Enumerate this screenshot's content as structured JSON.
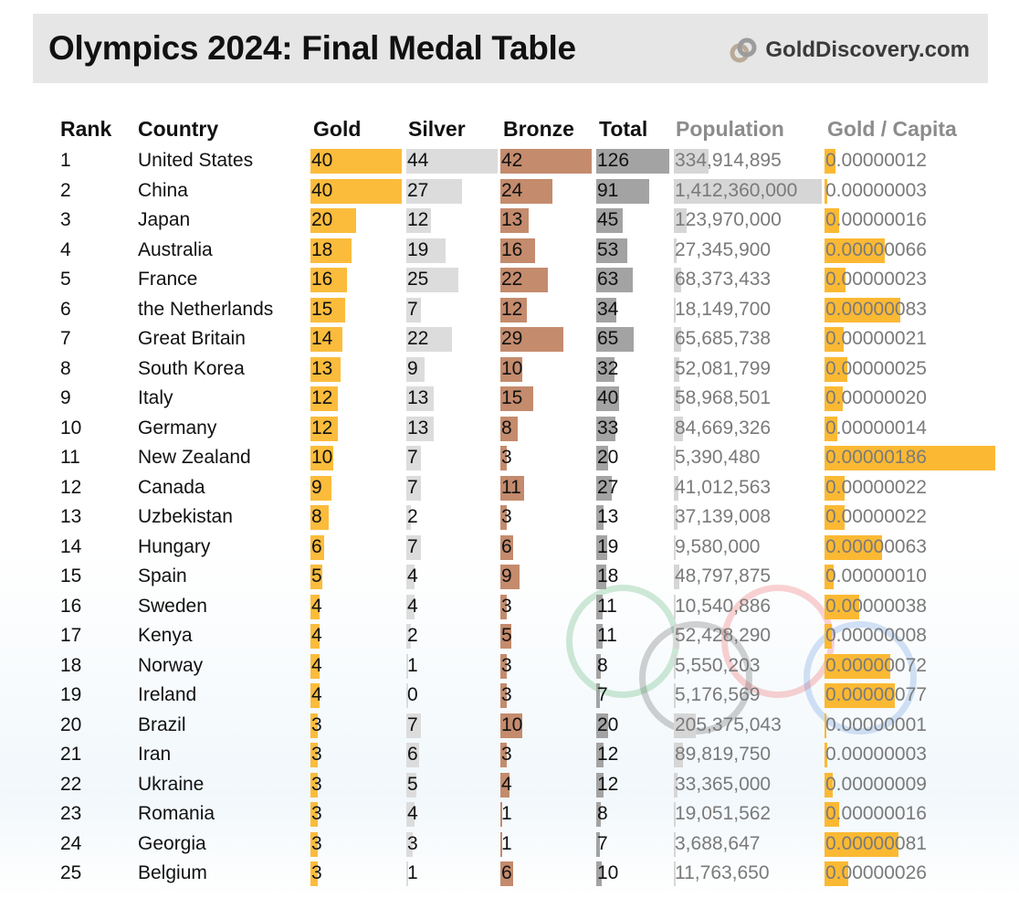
{
  "title": "Olympics 2024: Final Medal Table",
  "logo_text": "GoldDiscovery.com",
  "columns": [
    "Rank",
    "Country",
    "Gold",
    "Silver",
    "Bronze",
    "Total",
    "Population",
    "Gold / Capita"
  ],
  "colors": {
    "gold": "#fbbc3c",
    "silver": "#dcdcdc",
    "bronze": "#c48b6d",
    "total": "#a3a3a3",
    "population": "#d6d6d6",
    "gold_per_capita": "#fbb933"
  },
  "chart_data": {
    "type": "table",
    "title": "Olympics 2024: Final Medal Table",
    "columns": [
      "Rank",
      "Country",
      "Gold",
      "Silver",
      "Bronze",
      "Total",
      "Population",
      "Gold / Capita"
    ],
    "rows": [
      [
        "1",
        "United States",
        "40",
        "44",
        "42",
        "126",
        "334,914,895",
        "0.00000012"
      ],
      [
        "2",
        "China",
        "40",
        "27",
        "24",
        "91",
        "1,412,360,000",
        "0.00000003"
      ],
      [
        "3",
        "Japan",
        "20",
        "12",
        "13",
        "45",
        "123,970,000",
        "0.00000016"
      ],
      [
        "4",
        "Australia",
        "18",
        "19",
        "16",
        "53",
        "27,345,900",
        "0.00000066"
      ],
      [
        "5",
        "France",
        "16",
        "25",
        "22",
        "63",
        "68,373,433",
        "0.00000023"
      ],
      [
        "6",
        "the Netherlands",
        "15",
        "7",
        "12",
        "34",
        "18,149,700",
        "0.00000083"
      ],
      [
        "7",
        "Great Britain",
        "14",
        "22",
        "29",
        "65",
        "65,685,738",
        "0.00000021"
      ],
      [
        "8",
        "South Korea",
        "13",
        "9",
        "10",
        "32",
        "52,081,799",
        "0.00000025"
      ],
      [
        "9",
        "Italy",
        "12",
        "13",
        "15",
        "40",
        "58,968,501",
        "0.00000020"
      ],
      [
        "10",
        "Germany",
        "12",
        "13",
        "8",
        "33",
        "84,669,326",
        "0.00000014"
      ],
      [
        "11",
        "New Zealand",
        "10",
        "7",
        "3",
        "20",
        "5,390,480",
        "0.00000186"
      ],
      [
        "12",
        "Canada",
        "9",
        "7",
        "11",
        "27",
        "41,012,563",
        "0.00000022"
      ],
      [
        "13",
        "Uzbekistan",
        "8",
        "2",
        "3",
        "13",
        "37,139,008",
        "0.00000022"
      ],
      [
        "14",
        "Hungary",
        "6",
        "7",
        "6",
        "19",
        "9,580,000",
        "0.00000063"
      ],
      [
        "15",
        "Spain",
        "5",
        "4",
        "9",
        "18",
        "48,797,875",
        "0.00000010"
      ],
      [
        "16",
        "Sweden",
        "4",
        "4",
        "3",
        "11",
        "10,540,886",
        "0.00000038"
      ],
      [
        "17",
        "Kenya",
        "4",
        "2",
        "5",
        "11",
        "52,428,290",
        "0.00000008"
      ],
      [
        "18",
        "Norway",
        "4",
        "1",
        "3",
        "8",
        "5,550,203",
        "0.00000072"
      ],
      [
        "19",
        "Ireland",
        "4",
        "0",
        "3",
        "7",
        "5,176,569",
        "0.00000077"
      ],
      [
        "20",
        "Brazil",
        "3",
        "7",
        "10",
        "20",
        "205,375,043",
        "0.00000001"
      ],
      [
        "21",
        "Iran",
        "3",
        "6",
        "3",
        "12",
        "89,819,750",
        "0.00000003"
      ],
      [
        "22",
        "Ukraine",
        "3",
        "5",
        "4",
        "12",
        "33,365,000",
        "0.00000009"
      ],
      [
        "23",
        "Romania",
        "3",
        "4",
        "1",
        "8",
        "19,051,562",
        "0.00000016"
      ],
      [
        "24",
        "Georgia",
        "3",
        "3",
        "1",
        "7",
        "3,688,647",
        "0.00000081"
      ],
      [
        "25",
        "Belgium",
        "3",
        "1",
        "6",
        "10",
        "11,763,650",
        "0.00000026"
      ]
    ]
  }
}
